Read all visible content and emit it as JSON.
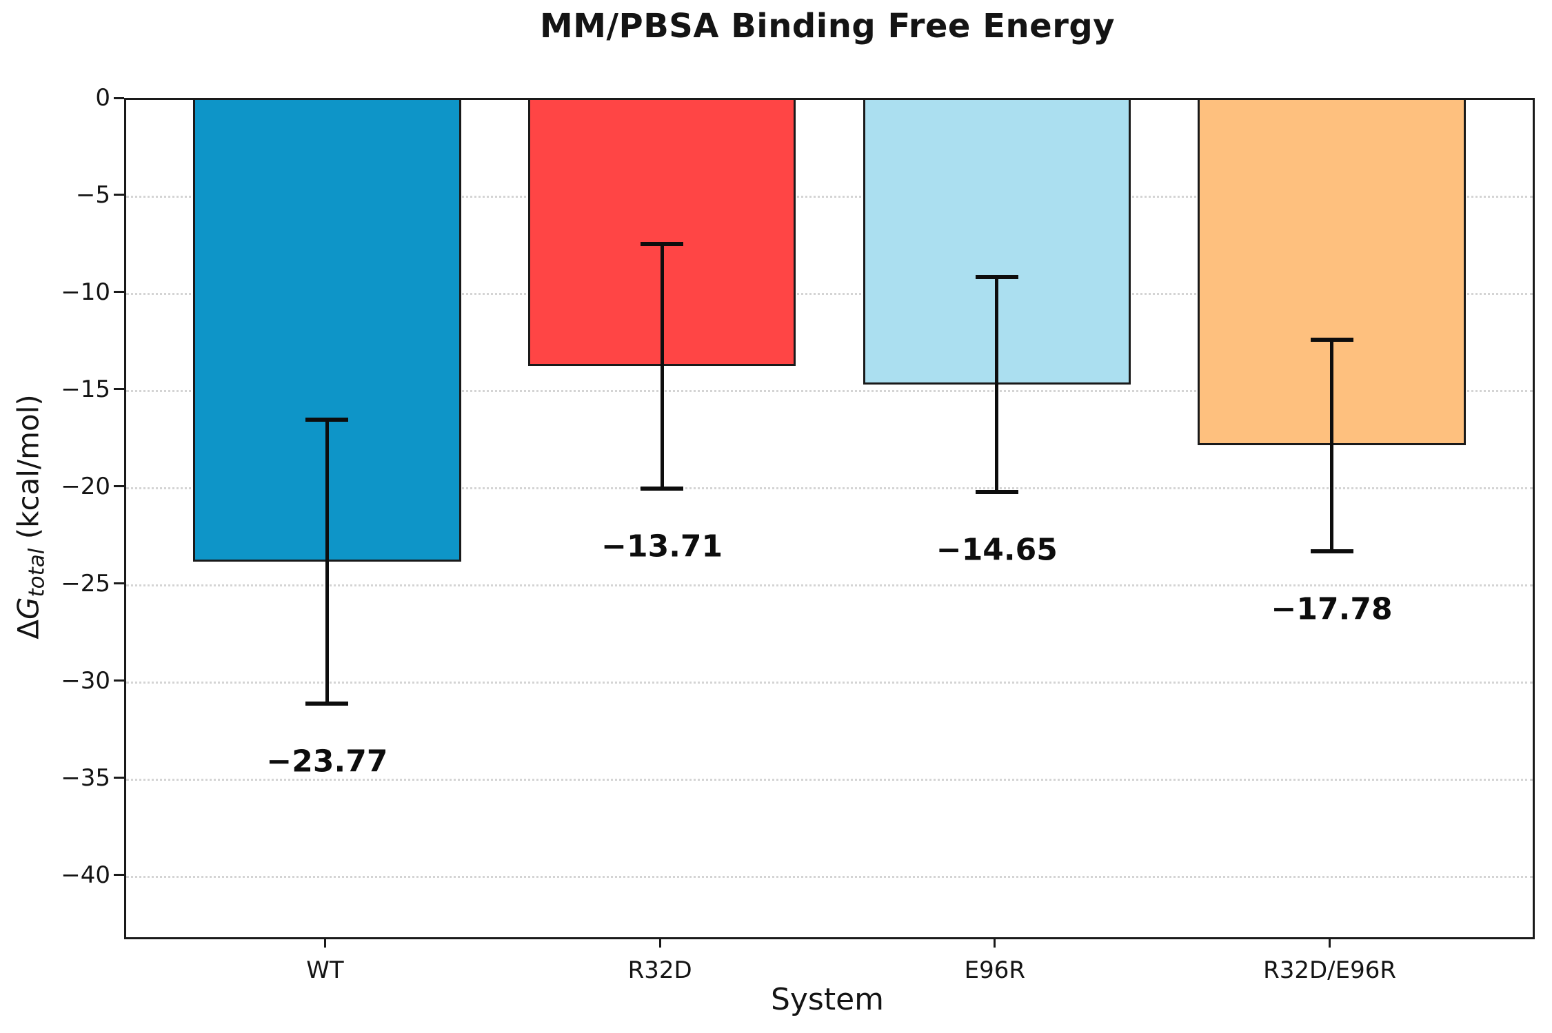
{
  "title": "MM/PBSA Binding Free Energy",
  "chart_data": {
    "type": "bar",
    "title": "MM/PBSA Binding Free Energy",
    "xlabel": "System",
    "ylabel": "ΔG_total (kcal/mol)",
    "ylabel_parts": {
      "delta": "Δ",
      "symbol": "G",
      "subscript": "total",
      "suffix": " (kcal/mol)"
    },
    "categories": [
      "WT",
      "R32D",
      "E96R",
      "R32D/E96R"
    ],
    "values": [
      -23.77,
      -13.71,
      -14.65,
      -17.78
    ],
    "errors": [
      7.3,
      6.3,
      5.55,
      5.45
    ],
    "value_labels": [
      "−23.77",
      "−13.71",
      "−14.65",
      "−17.78"
    ],
    "bar_colors": [
      "#0e95c8",
      "#ff4545",
      "#abdff0",
      "#fec07e"
    ],
    "bar_edge_color": "#1a1a1a",
    "error_color": "#0d0d0d",
    "ylim": [
      -43.1,
      0
    ],
    "yticks": [
      0,
      -5,
      -10,
      -15,
      -20,
      -25,
      -30,
      -35,
      -40
    ],
    "ytick_labels": [
      "0",
      "−5",
      "−10",
      "−15",
      "−20",
      "−25",
      "−30",
      "−35",
      "−40"
    ],
    "grid": "horizontal dotted, light gray",
    "legend_position": "none"
  }
}
